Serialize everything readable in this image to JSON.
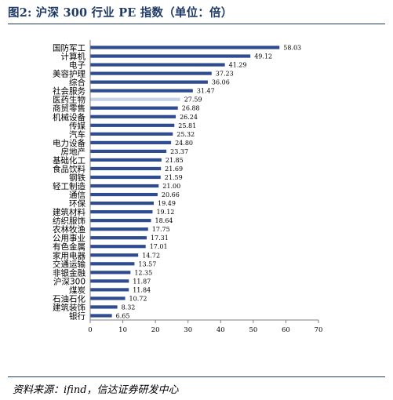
{
  "figure": {
    "title": "图2: 沪深 300 行业 PE 指数（单位：倍）",
    "source": "资料来源：ifind，信达证券研发中心"
  },
  "colors": {
    "bar": "#2e4c8f",
    "highlight_bar": "#c5d3e8",
    "title": "#1f3a66",
    "axis": "#7f7f7f"
  },
  "chart_data": {
    "type": "bar",
    "orientation": "horizontal",
    "categories": [
      "国防军工",
      "计算机",
      "电子",
      "美容护理",
      "综合",
      "社会服务",
      "医药生物",
      "商贸零售",
      "机械设备",
      "传媒",
      "汽车",
      "电力设备",
      "房地产",
      "基础化工",
      "食品饮料",
      "钢铁",
      "轻工制造",
      "通信",
      "环保",
      "建筑材料",
      "纺织服饰",
      "农林牧渔",
      "公用事业",
      "有色金属",
      "家用电器",
      "交通运输",
      "非银金融",
      "沪深300",
      "煤炭",
      "石油石化",
      "建筑装饰",
      "银行"
    ],
    "values": [
      58.03,
      49.12,
      41.29,
      37.23,
      36.06,
      31.47,
      27.59,
      26.88,
      26.24,
      25.81,
      25.32,
      24.8,
      23.37,
      21.85,
      21.69,
      21.59,
      21.0,
      20.66,
      19.49,
      19.12,
      18.64,
      17.75,
      17.31,
      17.01,
      14.72,
      13.57,
      12.35,
      11.87,
      11.84,
      10.72,
      8.32,
      6.65
    ],
    "value_labels": [
      "58.03",
      "49.12",
      "41.29",
      "37.23",
      "36.06",
      "31.47",
      "27.59",
      "26.88",
      "26.24",
      "25.81",
      "25.32",
      "24.80",
      "23.37",
      "21.85",
      "21.69",
      "21.59",
      "21.00",
      "20.66",
      "19.49",
      "19.12",
      "18.64",
      "17.75",
      "17.31",
      "17.01",
      "14.72",
      "13.57",
      "12.35",
      "11.87",
      "11.84",
      "10.72",
      "8.32",
      "6.65"
    ],
    "highlight": "医药生物",
    "xlim": [
      0,
      70
    ],
    "xticks": [
      "0",
      "10",
      "20",
      "30",
      "40",
      "50",
      "60",
      "70"
    ],
    "grid": false,
    "legend": "none"
  }
}
